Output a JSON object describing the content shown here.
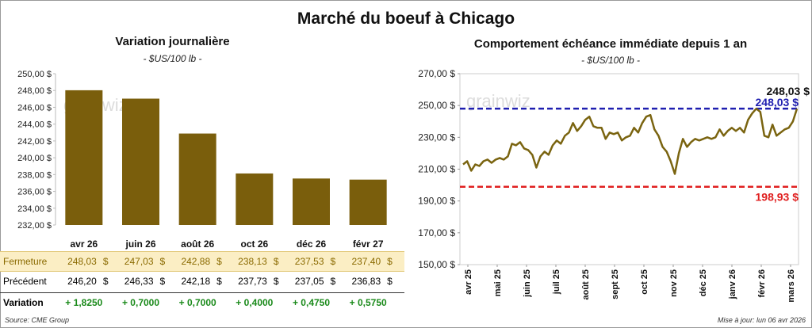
{
  "title": "Marché du boeuf à Chicago",
  "left": {
    "title": "Variation journalière",
    "unit": "- $US/100 lb -"
  },
  "right": {
    "title": "Comportement  échéance immédiate depuis 1 an",
    "unit": "- $US/100 lb -"
  },
  "watermark": "grainwiz",
  "table": {
    "fermeture_label": "Fermeture",
    "precedent_label": "Précédent",
    "variation_label": "Variation",
    "currency": "$",
    "fermeture": [
      "248,03",
      "247,03",
      "242,88",
      "238,13",
      "237,53",
      "237,40"
    ],
    "precedent": [
      "246,20",
      "246,33",
      "242,18",
      "237,73",
      "237,05",
      "236,83"
    ],
    "variation": [
      "+ 1,8250",
      "+ 0,7000",
      "+ 0,7000",
      "+ 0,4000",
      "+ 0,4750",
      "+ 0,5750"
    ]
  },
  "footer": {
    "source": "Source: CME Group",
    "updated": "Mise à jour: lun 06 avr 2026"
  },
  "colors": {
    "bar": "#7a5e0c",
    "line": "#7a6410",
    "blue_line": "#1f1fb0",
    "red_line": "#e02020",
    "positive": "#1a8a1a"
  },
  "chart_data": [
    {
      "type": "bar",
      "categories": [
        "avr 26",
        "juin 26",
        "août 26",
        "oct 26",
        "déc 26",
        "févr 27"
      ],
      "values": [
        248.03,
        247.03,
        242.88,
        238.13,
        237.53,
        237.4
      ],
      "ylim": [
        232,
        250
      ],
      "yticks": [
        232,
        234,
        236,
        238,
        240,
        242,
        244,
        246,
        248,
        250
      ],
      "ytick_labels": [
        "232,00 $",
        "234,00 $",
        "236,00 $",
        "238,00 $",
        "240,00 $",
        "242,00 $",
        "244,00 $",
        "246,00 $",
        "248,00 $",
        "250,00 $"
      ]
    },
    {
      "type": "line",
      "x_labels": [
        "avr 25",
        "mai 25",
        "juin 25",
        "juil 25",
        "août 25",
        "sept 25",
        "oct 25",
        "nov 25",
        "déc 25",
        "janv 26",
        "févr 26",
        "mars 26"
      ],
      "ylim": [
        150,
        270
      ],
      "yticks": [
        150,
        170,
        190,
        210,
        230,
        250,
        270
      ],
      "ytick_labels": [
        "150,00 $",
        "170,00 $",
        "190,00 $",
        "210,00 $",
        "230,00 $",
        "250,00 $",
        "270,00 $"
      ],
      "series": [
        {
          "values": [
            213,
            215,
            209,
            213,
            212,
            215,
            216,
            214,
            216,
            217,
            216,
            218,
            226,
            225,
            227,
            223,
            222,
            219,
            211,
            218,
            221,
            219,
            225,
            228,
            226,
            231,
            233,
            239,
            234,
            237,
            241,
            243,
            237,
            236,
            236,
            229,
            233,
            232,
            233,
            228,
            230,
            231,
            236,
            233,
            239,
            243,
            244,
            235,
            231,
            224,
            221,
            215,
            207,
            220,
            229,
            224,
            227,
            229,
            228,
            229,
            230,
            229,
            230,
            235,
            231,
            234,
            236,
            234,
            236,
            233,
            241,
            245,
            248,
            246,
            231,
            230,
            238,
            231,
            233,
            235,
            236,
            240,
            248
          ]
        }
      ],
      "hlines": [
        {
          "value": 248.03,
          "label": "248,03 $",
          "color": "#1f1fb0"
        },
        {
          "value": 198.93,
          "label": "198,93 $",
          "color": "#e02020"
        }
      ],
      "last_value_label": "248,03 $"
    }
  ]
}
